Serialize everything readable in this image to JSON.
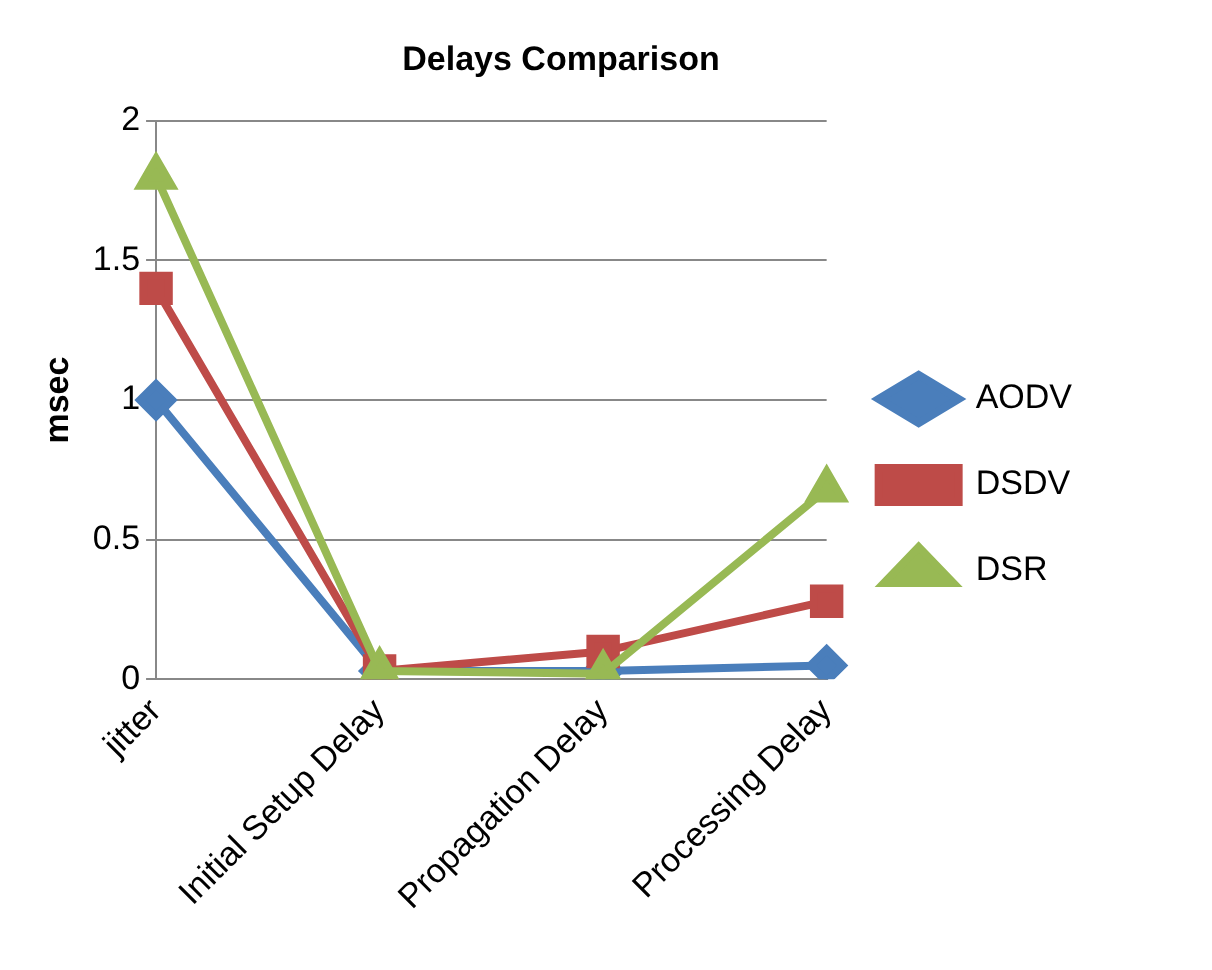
{
  "chart_data": {
    "type": "line",
    "title": "Delays Comparison",
    "ylabel": "msec",
    "categories": [
      "jitter",
      "Initial Setup Delay",
      "Propagation Delay",
      "Processing Delay"
    ],
    "series": [
      {
        "name": "AODV",
        "color": "#4a7ebb",
        "marker": "diamond",
        "values": [
          1.0,
          0.03,
          0.03,
          0.05
        ]
      },
      {
        "name": "DSDV",
        "color": "#be4b48",
        "marker": "square",
        "values": [
          1.4,
          0.03,
          0.1,
          0.28
        ]
      },
      {
        "name": "DSR",
        "color": "#98b954",
        "marker": "triangle",
        "values": [
          1.8,
          0.03,
          0.02,
          0.68
        ]
      }
    ],
    "ylim": [
      0,
      2
    ],
    "yticks": [
      0,
      0.5,
      1,
      1.5,
      2
    ],
    "grid": "y",
    "legend": "right"
  }
}
